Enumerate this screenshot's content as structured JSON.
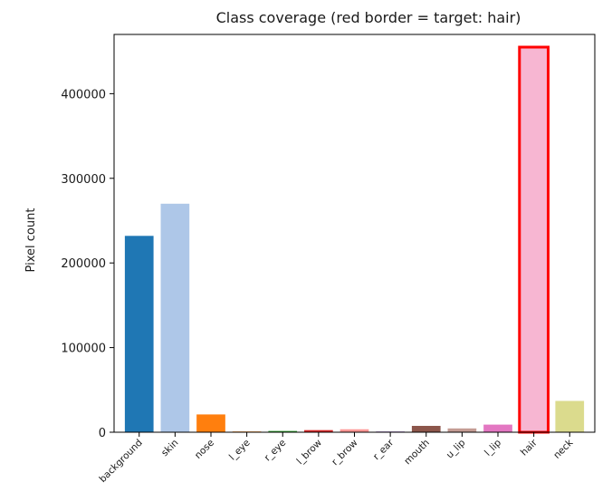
{
  "chart_data": {
    "type": "bar",
    "title": "Class coverage  (red border = target: hair)",
    "xlabel": "",
    "ylabel": "Pixel count",
    "ylim": [
      0,
      470000
    ],
    "y_ticks": [
      0,
      100000,
      200000,
      300000,
      400000
    ],
    "y_tick_labels": [
      "0",
      "100000",
      "200000",
      "300000",
      "400000"
    ],
    "grid": false,
    "categories": [
      "background",
      "skin",
      "nose",
      "l_eye",
      "r_eye",
      "l_brow",
      "r_brow",
      "r_ear",
      "mouth",
      "u_lip",
      "l_lip",
      "hair",
      "neck"
    ],
    "values": [
      232000,
      270000,
      21000,
      1200,
      1500,
      2500,
      3500,
      600,
      7500,
      4500,
      9000,
      455000,
      37000
    ],
    "bar_colors": [
      "#1f77b4",
      "#aec7e8",
      "#ff7f0e",
      "#ffbb78",
      "#2ca02c",
      "#d62728",
      "#ff9896",
      "#9467bd",
      "#8c564b",
      "#c49c94",
      "#e377c2",
      "#f7b6d2",
      "#dbdb8d"
    ],
    "highlight": {
      "category": "hair",
      "border_color": "#ff0000"
    }
  }
}
